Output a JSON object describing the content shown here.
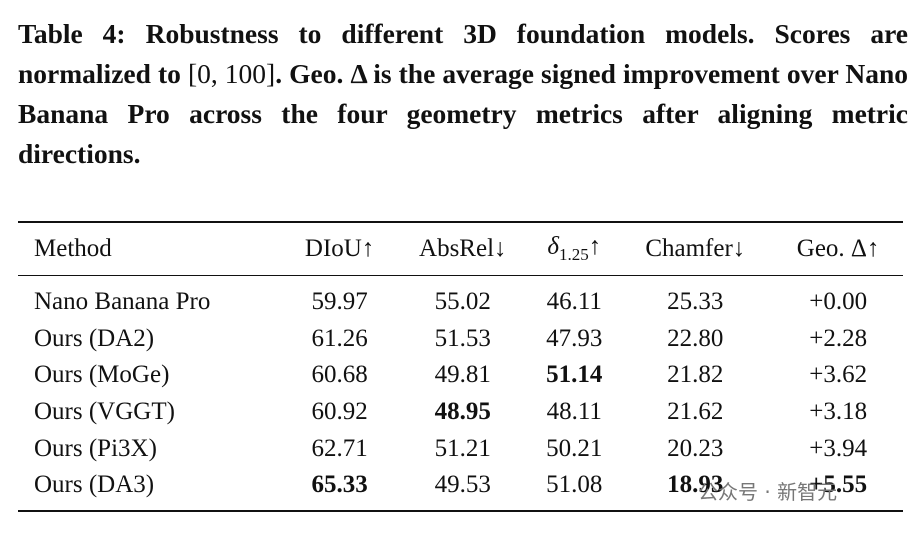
{
  "caption": {
    "label": "Table 4:",
    "text_1": "Robustness to different 3D foundation models. Scores are normalized to",
    "math": "[0, 100]",
    "text_2": ". Geo. Δ is the average signed improvement over Nano Banana Pro across the four geometry metrics after aligning metric directions."
  },
  "table": {
    "headers": [
      {
        "text": "Method"
      },
      {
        "text": "DIoU",
        "arrow": "↑"
      },
      {
        "text": "AbsRel",
        "arrow": "↓"
      },
      {
        "text": "δ",
        "sub": "1.25",
        "arrow": "↑"
      },
      {
        "text": "Chamfer",
        "arrow": "↓"
      },
      {
        "text": "Geo. Δ",
        "arrow": "↑"
      }
    ],
    "rows": [
      [
        "Nano Banana Pro",
        "59.97",
        "55.02",
        "46.11",
        "25.33",
        "+0.00"
      ],
      [
        "Ours (DA2)",
        "61.26",
        "51.53",
        "47.93",
        "22.80",
        "+2.28"
      ],
      [
        "Ours (MoGe)",
        "60.68",
        "49.81",
        "51.14",
        "21.82",
        "+3.62"
      ],
      [
        "Ours (VGGT)",
        "60.92",
        "48.95",
        "48.11",
        "21.62",
        "+3.18"
      ],
      [
        "Ours (Pi3X)",
        "62.71",
        "51.21",
        "50.21",
        "20.23",
        "+3.94"
      ],
      [
        "Ours (DA3)",
        "65.33",
        "49.53",
        "51.08",
        "18.93",
        "+5.55"
      ]
    ],
    "bold": [
      [
        2,
        3
      ],
      [
        3,
        2
      ],
      [
        5,
        1
      ],
      [
        5,
        4
      ],
      [
        5,
        5
      ]
    ]
  },
  "watermark": "公众号 · 新智元"
}
